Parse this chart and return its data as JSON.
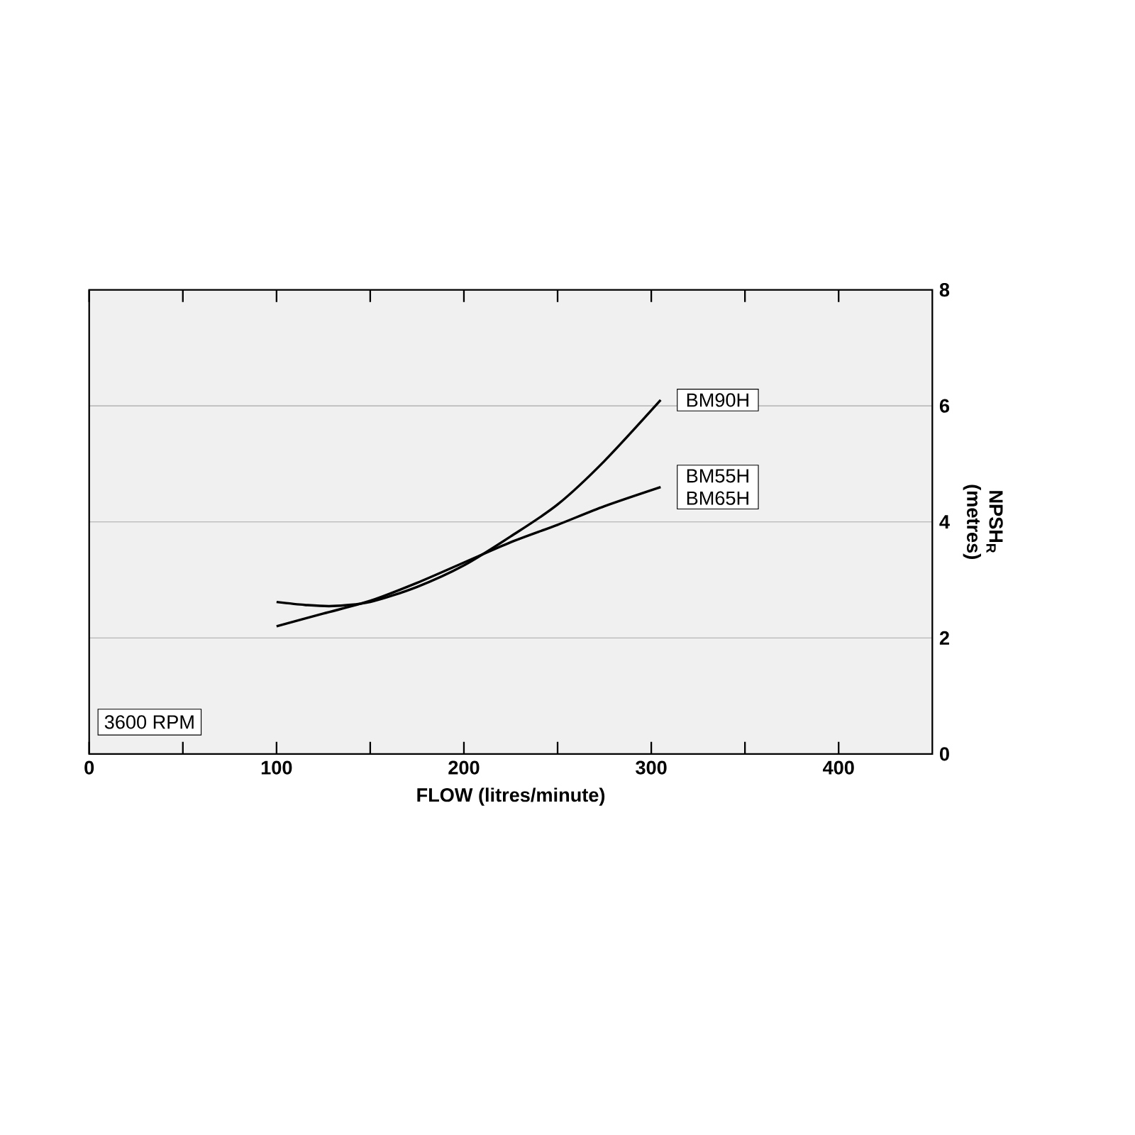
{
  "chart_data": {
    "type": "line",
    "xlabel": "FLOW (litres/minute)",
    "ylabel": "NPSH$_{R}$ (metres)",
    "annotations": [
      "3600 RPM"
    ],
    "series": [
      {
        "name": "BM90H",
        "color": "#000000",
        "x": [
          100,
          115,
          130,
          150,
          175,
          200,
          225,
          250,
          275,
          305
        ],
        "values": [
          2.62,
          2.57,
          2.55,
          2.62,
          2.88,
          3.25,
          3.75,
          4.3,
          5.05,
          6.1
        ]
      },
      {
        "name": "BM55H BM65H",
        "color": "#000000",
        "x": [
          100,
          125,
          150,
          175,
          200,
          225,
          250,
          275,
          305
        ],
        "values": [
          2.2,
          2.42,
          2.64,
          2.95,
          3.3,
          3.65,
          3.95,
          4.27,
          4.6
        ]
      }
    ],
    "xlim": [
      0,
      450
    ],
    "ylim": [
      0,
      8
    ],
    "xticks": [
      0,
      {
        "value": 50,
        "label": null
      },
      100,
      {
        "value": 150,
        "label": null
      },
      200,
      {
        "value": 250,
        "label": null
      },
      300,
      {
        "value": 350,
        "label": null
      },
      400
    ],
    "yticks": [
      0,
      2,
      4,
      6,
      8
    ],
    "grid": "y",
    "line_style": "solid"
  }
}
